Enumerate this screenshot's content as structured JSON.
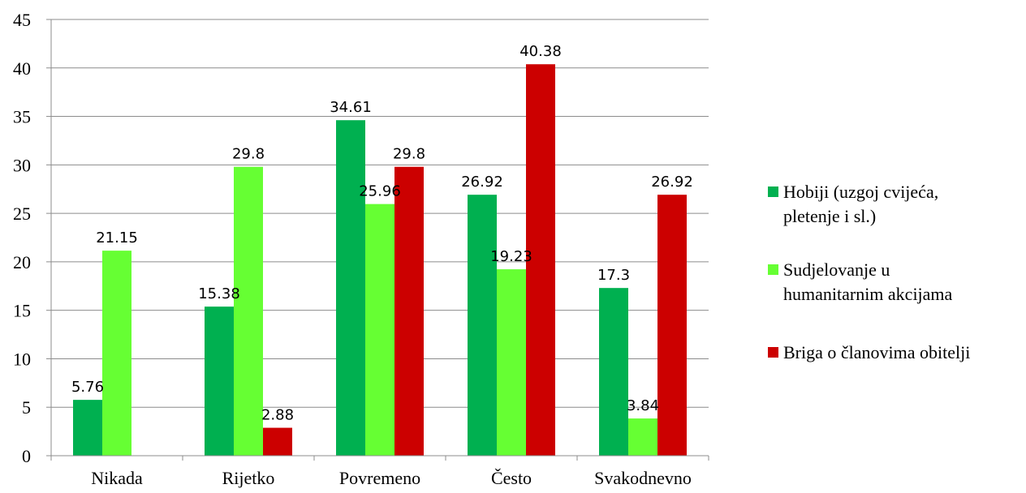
{
  "chart_data": {
    "type": "bar",
    "title": "",
    "xlabel": "",
    "ylabel": "",
    "ylim": [
      0,
      45
    ],
    "yticks": [
      0,
      5,
      10,
      15,
      20,
      25,
      30,
      35,
      40,
      45
    ],
    "grid": true,
    "legend_position": "right",
    "categories": [
      "Nikada",
      "Rijetko",
      "Povremeno",
      "Često",
      "Svakodnevno"
    ],
    "series": [
      {
        "name": "Hobiji (uzgoj cvijeća, pletenje i sl.)",
        "legend_lines": [
          "Hobiji (uzgoj cvijeća,",
          "pletenje i sl.)"
        ],
        "color": "#00b050",
        "values": [
          5.76,
          15.38,
          34.61,
          26.92,
          17.3
        ],
        "labels": [
          "5.76",
          "15.38",
          "34.61",
          "26.92",
          "17.3"
        ]
      },
      {
        "name": "Sudjelovanje u humanitarnim akcijama",
        "legend_lines": [
          "Sudjelovanje u",
          "humanitarnim akcijama"
        ],
        "color": "#66ff33",
        "values": [
          21.15,
          29.8,
          25.96,
          19.23,
          3.84
        ],
        "labels": [
          "21.15",
          "29.8",
          "25.96",
          "19.23",
          "3.84"
        ]
      },
      {
        "name": "Briga o članovima obitelji",
        "legend_lines": [
          "Briga o članovima obitelji"
        ],
        "color": "#cc0000",
        "values": [
          null,
          2.88,
          29.8,
          40.38,
          26.92
        ],
        "labels": [
          null,
          "2.88",
          "29.8",
          "40.38",
          "26.92"
        ]
      }
    ]
  }
}
